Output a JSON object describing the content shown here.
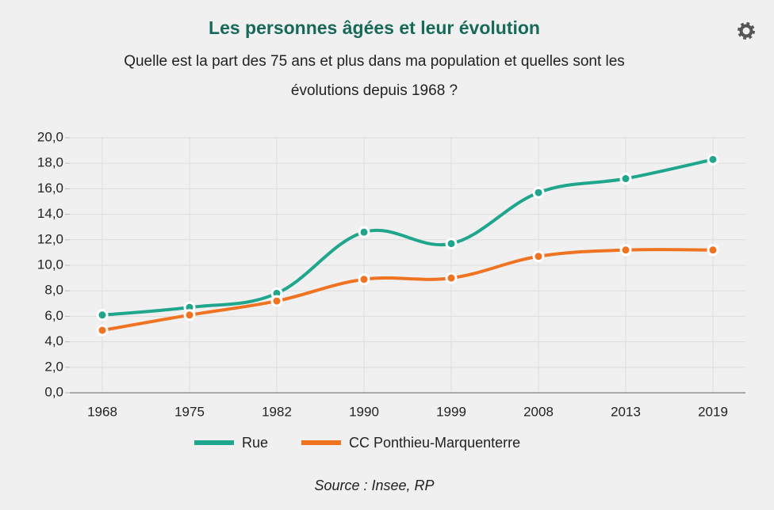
{
  "chart_data": {
    "type": "line",
    "title": "Les personnes âgées et leur évolution",
    "subtitle": [
      "Quelle est la part des 75 ans et plus dans ma population et quelles sont les",
      "évolutions depuis 1968 ?"
    ],
    "categories": [
      "1968",
      "1975",
      "1982",
      "1990",
      "1999",
      "2008",
      "2013",
      "2019"
    ],
    "series": [
      {
        "name": "Rue",
        "color": "#1fa68d",
        "values": [
          6.1,
          6.7,
          7.8,
          12.6,
          11.7,
          15.7,
          16.8,
          18.3
        ]
      },
      {
        "name": "CC Ponthieu-Marquenterre",
        "color": "#f07322",
        "values": [
          4.9,
          6.1,
          7.2,
          8.9,
          9.0,
          10.7,
          11.2,
          11.2
        ]
      }
    ],
    "ylim": [
      0,
      20
    ],
    "yticks": [
      {
        "value": 0,
        "label": "0,0"
      },
      {
        "value": 2,
        "label": "2,0"
      },
      {
        "value": 4,
        "label": "4,0"
      },
      {
        "value": 6,
        "label": "6,0"
      },
      {
        "value": 8,
        "label": "8,0"
      },
      {
        "value": 10,
        "label": "10,0"
      },
      {
        "value": 12,
        "label": "12,0"
      },
      {
        "value": 14,
        "label": "14,0"
      },
      {
        "value": 16,
        "label": "16,0"
      },
      {
        "value": 18,
        "label": "18,0"
      },
      {
        "value": 20,
        "label": "20,0"
      }
    ],
    "grid": true,
    "source": "Source : Insee, RP"
  }
}
